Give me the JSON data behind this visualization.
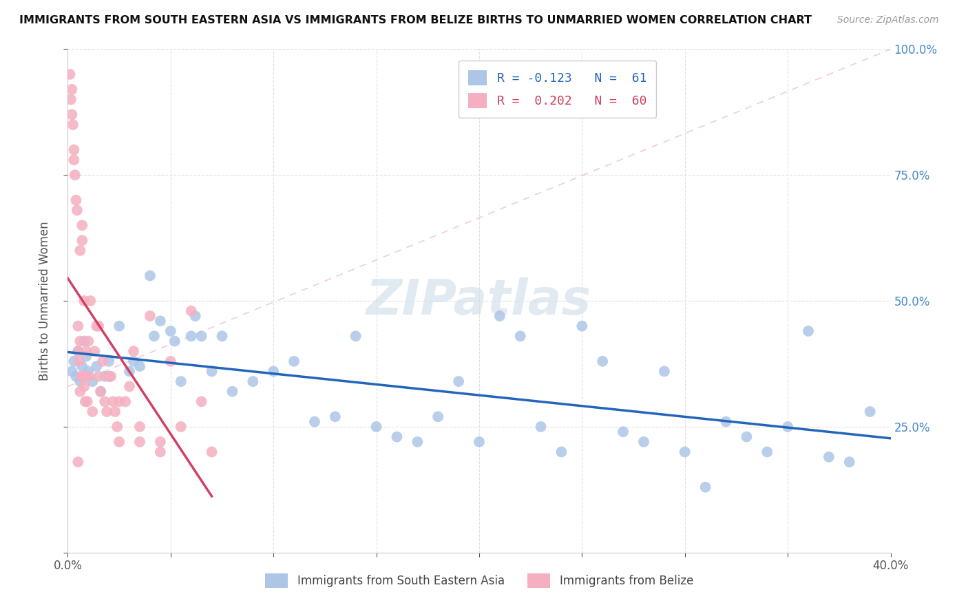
{
  "title": "IMMIGRANTS FROM SOUTH EASTERN ASIA VS IMMIGRANTS FROM BELIZE BIRTHS TO UNMARRIED WOMEN CORRELATION CHART",
  "source": "Source: ZipAtlas.com",
  "ylabel": "Births to Unmarried Women",
  "xmin": 0.0,
  "xmax": 40.0,
  "ymin": 0.0,
  "ymax": 100.0,
  "blue_R": -0.123,
  "blue_N": 61,
  "pink_R": 0.202,
  "pink_N": 60,
  "blue_color": "#adc6e8",
  "blue_line_color": "#2266bb",
  "pink_color": "#f5afc0",
  "pink_line_color": "#d04060",
  "pink_ref_line_color": "#e8c0cc",
  "watermark": "ZIPatlas",
  "legend_blue_label": "R = -0.123   N =  61",
  "legend_pink_label": "R =  0.202   N =  60",
  "background_color": "#ffffff",
  "grid_color": "#e0e0e0",
  "blue_scatter_x": [
    0.2,
    0.3,
    0.4,
    0.5,
    0.6,
    0.7,
    0.8,
    0.9,
    1.0,
    1.2,
    1.4,
    1.6,
    1.8,
    2.0,
    2.5,
    3.0,
    3.5,
    4.0,
    4.5,
    5.0,
    5.5,
    6.0,
    6.5,
    7.0,
    8.0,
    9.0,
    10.0,
    11.0,
    12.0,
    13.0,
    14.0,
    15.0,
    16.0,
    17.0,
    18.0,
    19.0,
    20.0,
    21.0,
    22.0,
    23.0,
    24.0,
    25.0,
    26.0,
    27.0,
    28.0,
    29.0,
    30.0,
    31.0,
    32.0,
    33.0,
    34.0,
    35.0,
    36.0,
    37.0,
    38.0,
    39.0,
    3.2,
    4.2,
    5.2,
    6.2,
    7.5
  ],
  "blue_scatter_y": [
    36,
    38,
    35,
    40,
    34,
    37,
    42,
    39,
    36,
    34,
    37,
    32,
    35,
    38,
    45,
    36,
    37,
    55,
    46,
    44,
    34,
    43,
    43,
    36,
    32,
    34,
    36,
    38,
    26,
    27,
    43,
    25,
    23,
    22,
    27,
    34,
    22,
    47,
    43,
    25,
    20,
    45,
    38,
    24,
    22,
    36,
    20,
    13,
    26,
    23,
    20,
    25,
    44,
    19,
    18,
    28,
    38,
    43,
    42,
    47,
    43
  ],
  "pink_scatter_x": [
    0.1,
    0.15,
    0.2,
    0.2,
    0.25,
    0.3,
    0.3,
    0.35,
    0.4,
    0.45,
    0.5,
    0.5,
    0.55,
    0.6,
    0.6,
    0.65,
    0.7,
    0.7,
    0.75,
    0.8,
    0.8,
    0.85,
    0.9,
    0.9,
    0.95,
    1.0,
    1.0,
    1.1,
    1.2,
    1.3,
    1.4,
    1.5,
    1.6,
    1.7,
    1.8,
    1.9,
    2.0,
    2.1,
    2.2,
    2.3,
    2.4,
    2.5,
    2.8,
    3.0,
    3.2,
    3.5,
    4.0,
    4.5,
    5.0,
    5.5,
    6.0,
    6.5,
    7.0,
    0.5,
    0.6,
    1.5,
    2.0,
    2.5,
    3.5,
    4.5
  ],
  "pink_scatter_y": [
    95,
    90,
    87,
    92,
    85,
    80,
    78,
    75,
    70,
    68,
    40,
    45,
    38,
    42,
    60,
    35,
    62,
    65,
    35,
    33,
    50,
    30,
    35,
    40,
    30,
    35,
    42,
    50,
    28,
    40,
    45,
    35,
    32,
    38,
    30,
    28,
    35,
    35,
    30,
    28,
    25,
    22,
    30,
    33,
    40,
    22,
    47,
    20,
    38,
    25,
    48,
    30,
    20,
    18,
    32,
    45,
    35,
    30,
    25,
    22
  ]
}
